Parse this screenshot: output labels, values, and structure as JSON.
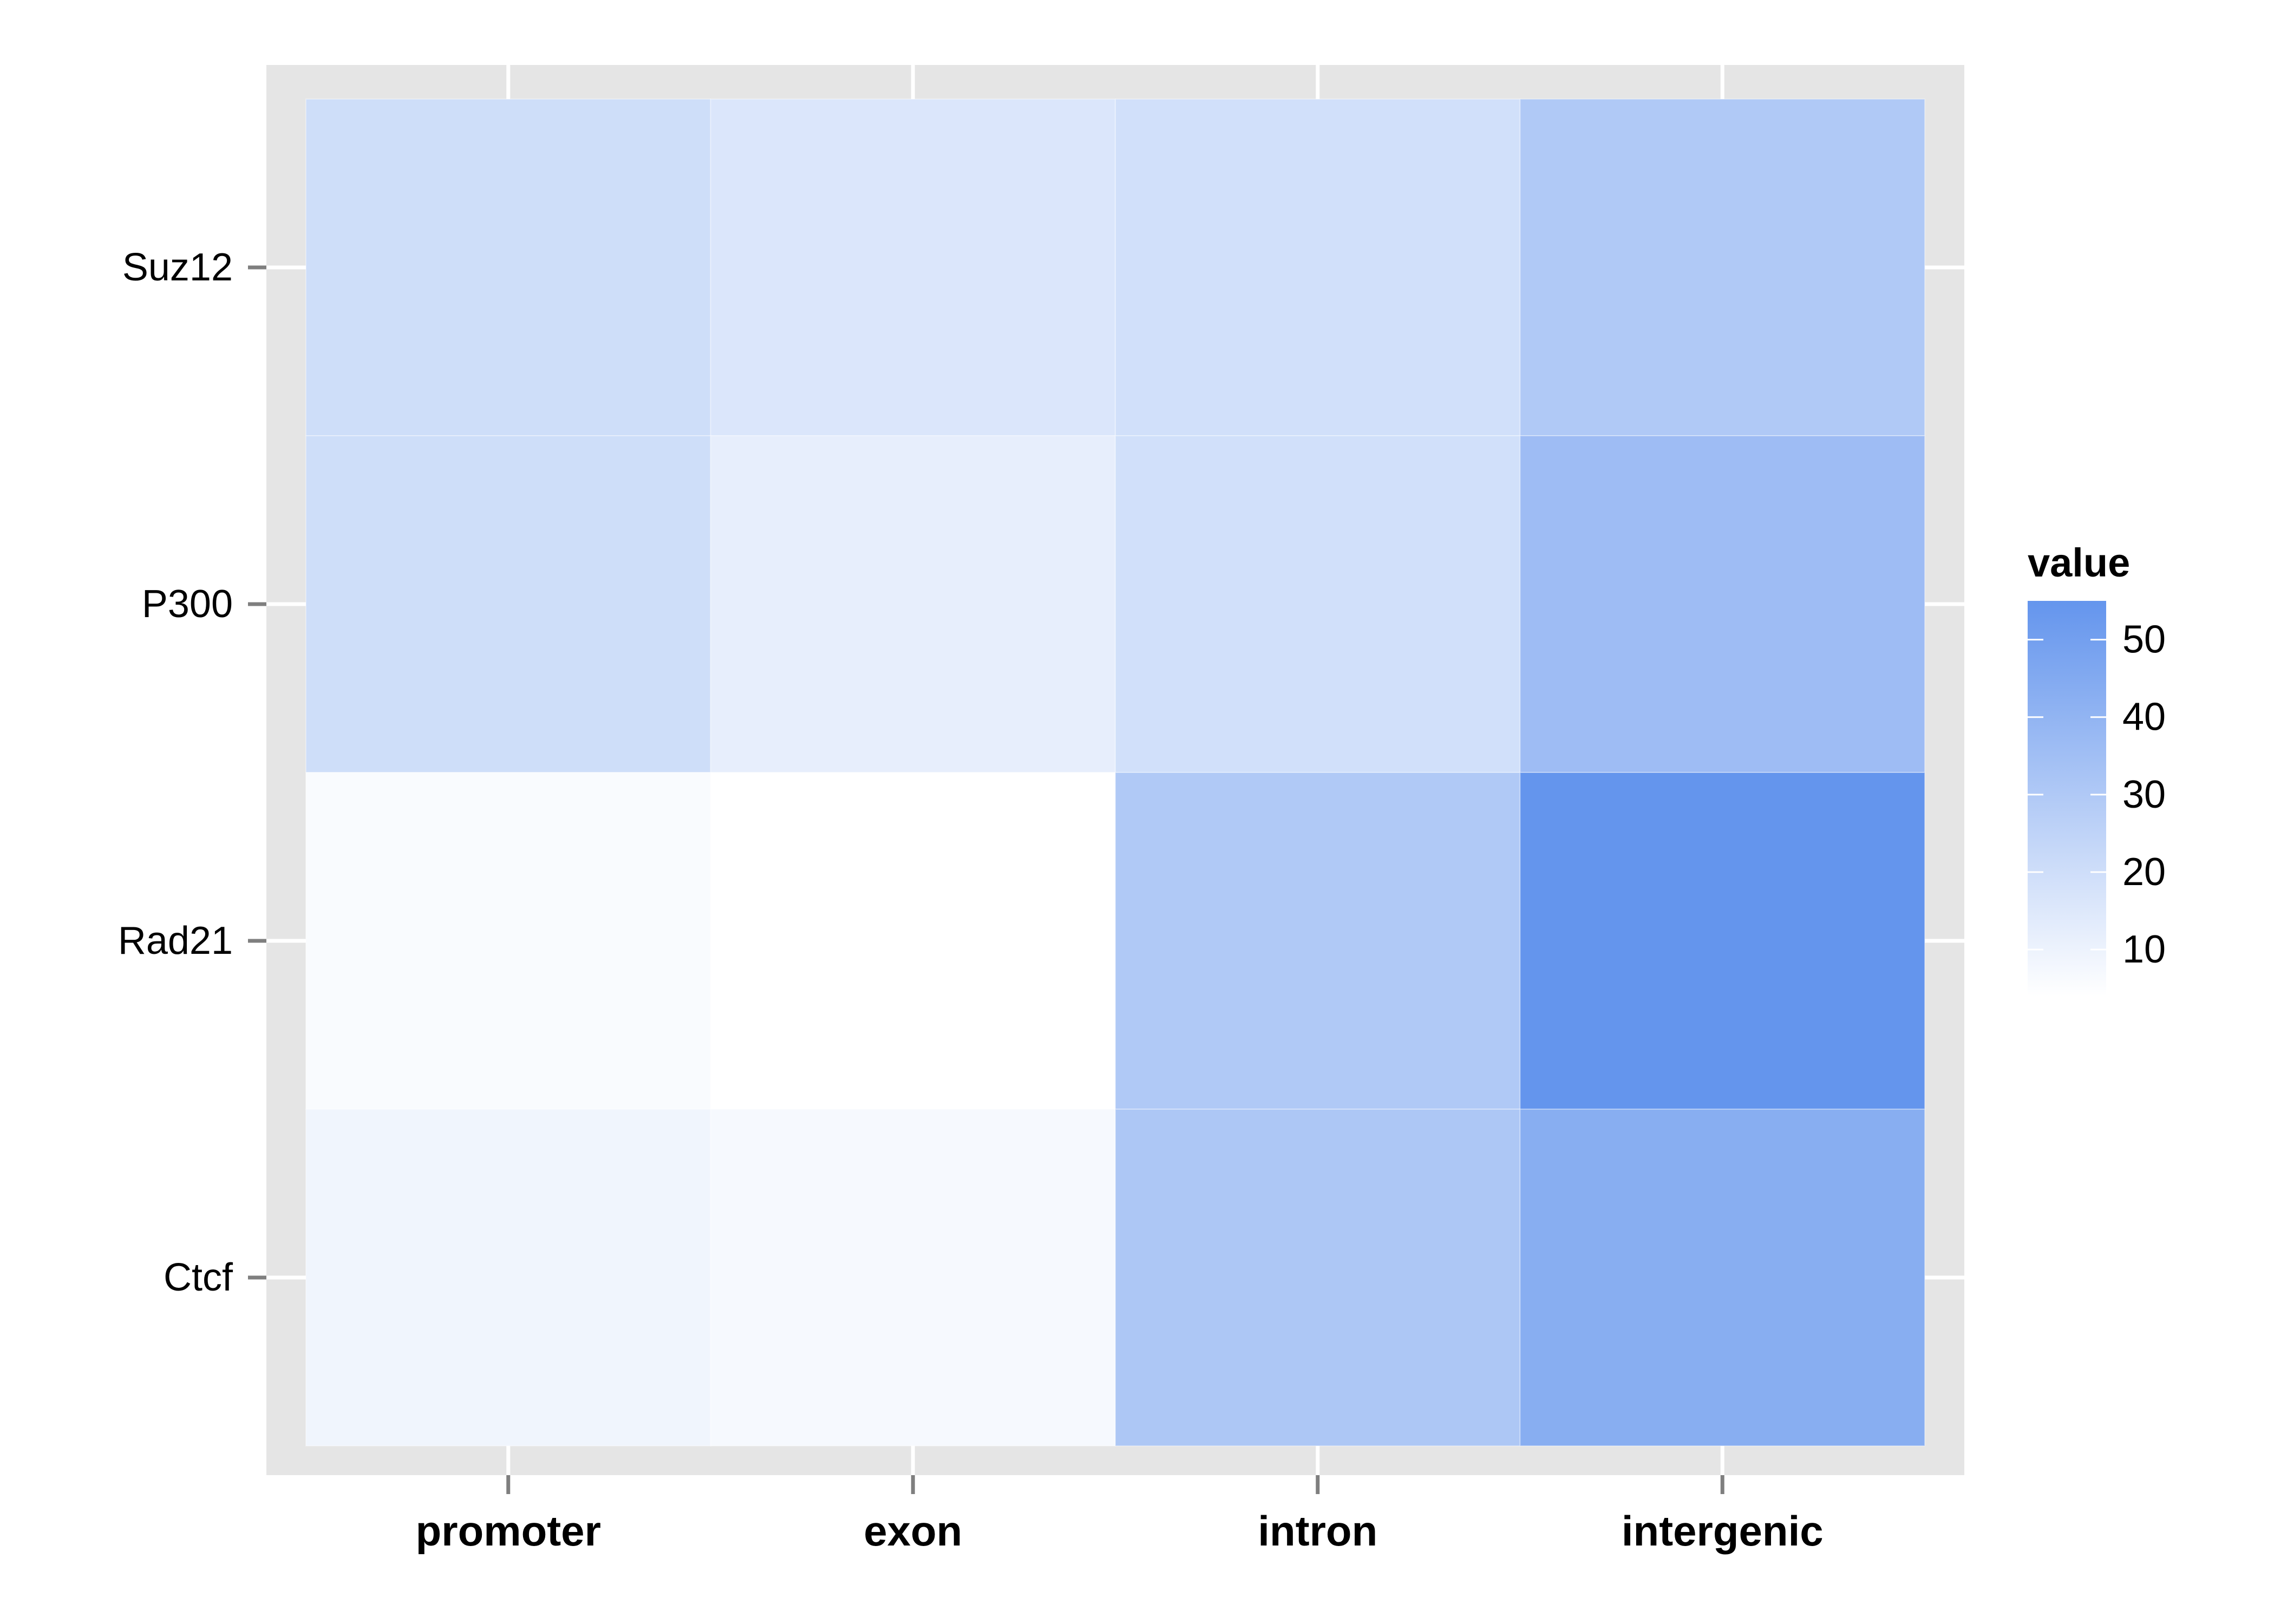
{
  "chart_data": {
    "type": "heatmap",
    "title": "",
    "xlabel": "",
    "ylabel": "",
    "x_categories": [
      "promoter",
      "exon",
      "intron",
      "intergenic"
    ],
    "y_categories": [
      "Suz12",
      "P300",
      "Rad21",
      "Ctcf"
    ],
    "values": [
      [
        20,
        16,
        19,
        30
      ],
      [
        20,
        12,
        19,
        36
      ],
      [
        6,
        4,
        30,
        55
      ],
      [
        9,
        7,
        31,
        43
      ]
    ],
    "legend": {
      "title": "value",
      "ticks": [
        10,
        20,
        30,
        40,
        50
      ],
      "range": [
        4,
        55
      ],
      "position": "right"
    },
    "color_low": "#ffffff",
    "color_high": "#6495ed",
    "panel_background": "#e5e5e5",
    "grid": true
  }
}
